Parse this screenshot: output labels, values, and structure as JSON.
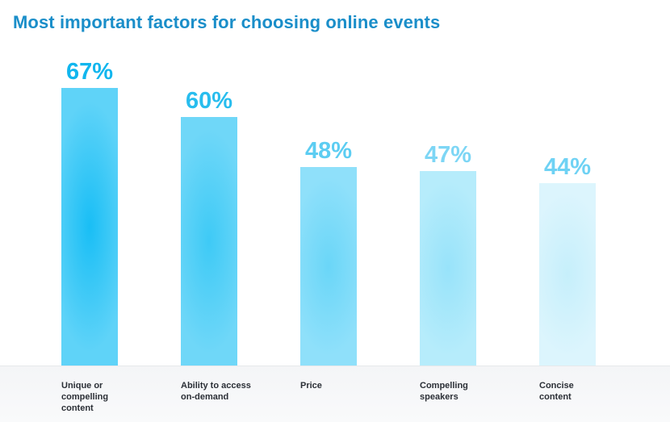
{
  "chart_data": {
    "type": "bar",
    "title": "Most important factors for choosing online events",
    "categories": [
      "Unique or compelling content",
      "Ability to access on-demand",
      "Price",
      "Compelling speakers",
      "Concise content"
    ],
    "category_lines": [
      [
        "Unique or",
        "compelling",
        "content"
      ],
      [
        "Ability to access",
        "on-demand"
      ],
      [
        "Price"
      ],
      [
        "Compelling",
        "speakers"
      ],
      [
        "Concise",
        "content"
      ]
    ],
    "values": [
      67,
      60,
      48,
      47,
      44
    ],
    "value_labels": [
      "67%",
      "60%",
      "48%",
      "47%",
      "44%"
    ],
    "ylim": [
      0,
      67
    ],
    "xlabel": "",
    "ylabel": "",
    "grid": false,
    "colors": {
      "title": "#1a8ec9",
      "bars": [
        [
          "#5fd3f8",
          "#19bef5"
        ],
        [
          "#6fd7f8",
          "#3ecaf6"
        ],
        [
          "#8fe0fa",
          "#6ad6f8"
        ],
        [
          "#b6ecfb",
          "#98e3fa"
        ],
        [
          "#dcf5fd",
          "#c6effb"
        ]
      ],
      "value_text": [
        "#11b6ee",
        "#28bdee",
        "#5ccdf2",
        "#7dd6f5",
        "#6fd2f4"
      ],
      "label_text": "#2b2f36"
    }
  }
}
